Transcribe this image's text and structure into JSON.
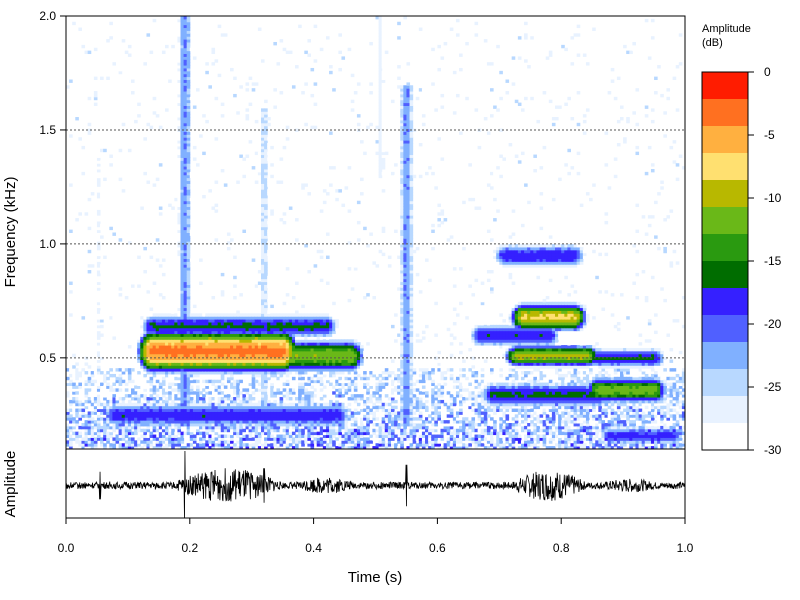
{
  "chart_data": {
    "type": "heatmap",
    "title": "",
    "xlabel": "Time (s)",
    "ylabel": "Frequency (kHz)",
    "ylabel2": "Amplitude",
    "xlim": [
      0.0,
      1.0
    ],
    "ylim": [
      0.1,
      2.0
    ],
    "x_ticks": [
      "0.0",
      "0.2",
      "0.4",
      "0.6",
      "0.8",
      "1.0"
    ],
    "y_ticks": [
      "0.5",
      "1.0",
      "1.5",
      "2.0"
    ],
    "grid": "horizontal dotted",
    "legend": {
      "title_line1": "Amplitude",
      "title_line2": "(dB)",
      "placement": "right",
      "ticks": [
        "0",
        "-5",
        "-10",
        "-15",
        "-20",
        "-25",
        "-30"
      ],
      "range": [
        -30,
        0
      ]
    },
    "colormap": [
      "#ffffff",
      "#e8f2ff",
      "#b8d8ff",
      "#80b0ff",
      "#5060ff",
      "#3520ff",
      "#006d00",
      "#2a9a10",
      "#6ab818",
      "#b8b800",
      "#ffe070",
      "#ffb040",
      "#ff7020",
      "#ff1c00"
    ],
    "blobs": [
      {
        "t0": 0.14,
        "t1": 0.35,
        "f": 0.53,
        "df": 0.07,
        "db": -1
      },
      {
        "t0": 0.36,
        "t1": 0.46,
        "f": 0.51,
        "df": 0.06,
        "db": -9
      },
      {
        "t0": 0.74,
        "t1": 0.82,
        "f": 0.68,
        "df": 0.05,
        "db": -6
      },
      {
        "t0": 0.73,
        "t1": 0.84,
        "f": 0.51,
        "df": 0.04,
        "db": -8
      },
      {
        "t0": 0.86,
        "t1": 0.95,
        "f": 0.36,
        "df": 0.05,
        "db": -10
      },
      {
        "t0": 0.69,
        "t1": 0.86,
        "f": 0.34,
        "df": 0.05,
        "db": -15
      },
      {
        "t0": 0.08,
        "t1": 0.44,
        "f": 0.25,
        "df": 0.05,
        "db": -16
      },
      {
        "t0": 0.14,
        "t1": 0.42,
        "f": 0.64,
        "df": 0.05,
        "db": -15
      },
      {
        "t0": 0.67,
        "t1": 0.78,
        "f": 0.6,
        "df": 0.05,
        "db": -16
      },
      {
        "t0": 0.71,
        "t1": 0.82,
        "f": 0.95,
        "df": 0.05,
        "db": -16
      },
      {
        "t0": 0.86,
        "t1": 0.95,
        "f": 0.5,
        "df": 0.04,
        "db": -15
      },
      {
        "t0": 0.88,
        "t1": 0.98,
        "f": 0.16,
        "df": 0.04,
        "db": -17
      }
    ],
    "streaks": [
      {
        "t": 0.192,
        "f0": 0.2,
        "f1": 2.0,
        "db": -20
      },
      {
        "t": 0.55,
        "f0": 0.2,
        "f1": 1.7,
        "db": -20
      },
      {
        "t": 0.508,
        "f0": 1.3,
        "f1": 2.0,
        "db": -26
      },
      {
        "t": 0.053,
        "f0": 0.2,
        "f1": 1.4,
        "db": -27
      },
      {
        "t": 0.32,
        "f0": 0.2,
        "f1": 1.6,
        "db": -24
      }
    ],
    "noise": {
      "f_max": 0.45,
      "db_min": -28,
      "db_max": -17
    },
    "waveform": {
      "baseline_amp": 0.1,
      "envelopes": [
        {
          "t0": 0.16,
          "t1": 0.36,
          "amp": 0.5
        },
        {
          "t0": 0.36,
          "t1": 0.48,
          "amp": 0.25
        },
        {
          "t0": 0.71,
          "t1": 0.85,
          "amp": 0.45
        },
        {
          "t0": 0.85,
          "t1": 0.97,
          "amp": 0.2
        }
      ],
      "clicks": [
        {
          "t": 0.192,
          "amp": 1.0
        },
        {
          "t": 0.55,
          "amp": 0.6
        },
        {
          "t": 0.055,
          "amp": 0.4
        },
        {
          "t": 0.32,
          "amp": 0.5
        }
      ]
    }
  }
}
